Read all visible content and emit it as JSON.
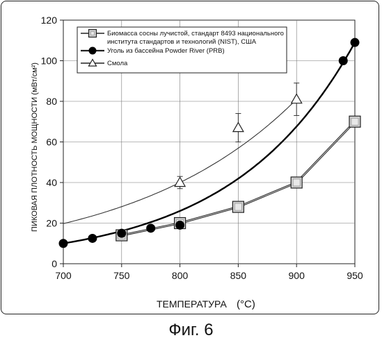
{
  "figure": {
    "caption": "Фиг. 6"
  },
  "chart_data": {
    "type": "line",
    "title": "",
    "xlabel": "ТЕМПЕРАТУРА",
    "xlabel_unit": "(°C)",
    "ylabel": "ПИКОВАЯ ПЛОТНОСТЬ МОЩНОСТИ (мВт/см²)",
    "xlim": [
      700,
      950
    ],
    "ylim": [
      0,
      120
    ],
    "xticks": [
      700,
      750,
      800,
      850,
      900,
      950
    ],
    "yticks": [
      0,
      20,
      40,
      60,
      80,
      100,
      120
    ],
    "x_tick_labels": [
      "700",
      "750",
      "800",
      "850",
      "900",
      "950"
    ],
    "y_tick_labels": [
      "0",
      "20",
      "40",
      "60",
      "80",
      "100",
      "120"
    ],
    "grid": true,
    "legend_position": "top-center",
    "series": [
      {
        "name": "Биомасса сосны лучистой, стандарт 8493 национального института стандартов и технологий (NIST), США",
        "legend_lines": [
          "Биомасса сосны лучистой, стандарт 8493 национального",
          "института стандартов и технологий (NIST), США"
        ],
        "marker": "square",
        "x": [
          750,
          800,
          850,
          900,
          950
        ],
        "y": [
          14,
          20,
          28,
          40,
          70
        ],
        "curve": "connected",
        "color": "#555555"
      },
      {
        "name": "Уголь из бассейна Powder River (PRB)",
        "legend_lines": [
          "Уголь из бассейна Powder River (PRB)"
        ],
        "marker": "circle",
        "x": [
          700,
          725,
          750,
          775,
          800,
          940,
          950
        ],
        "y": [
          10,
          12.5,
          15,
          17.5,
          19,
          100,
          109
        ],
        "curve": "fit",
        "color": "#000000"
      },
      {
        "name": "Смола",
        "legend_lines": [
          "Смола"
        ],
        "marker": "triangle",
        "x": [
          800,
          850,
          900
        ],
        "y": [
          40,
          67,
          81
        ],
        "error": [
          3,
          7,
          8
        ],
        "curve": "fit",
        "color": "#333333"
      }
    ]
  }
}
